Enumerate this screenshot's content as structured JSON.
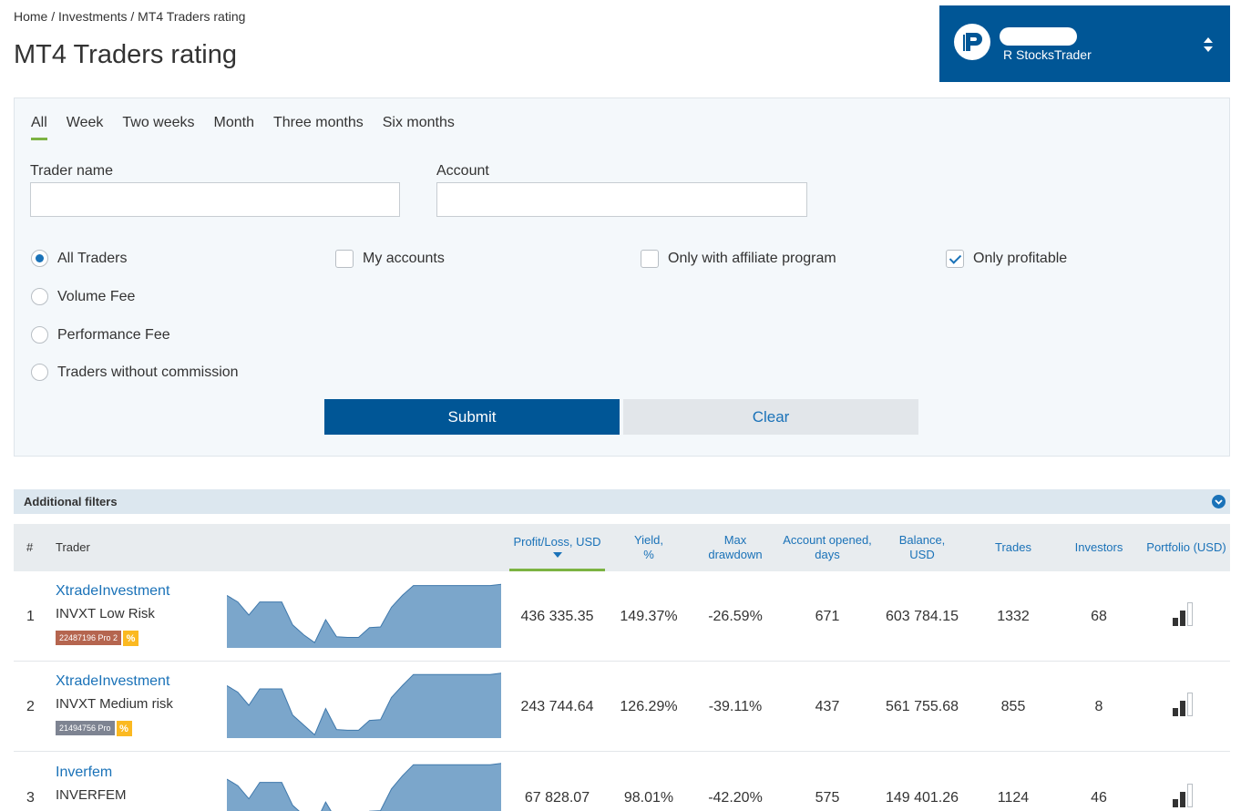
{
  "breadcrumb": "Home / Investments / MT4 Traders rating",
  "page_title": "MT4 Traders rating",
  "account": {
    "platform": "R StocksTrader"
  },
  "tabs": [
    "All",
    "Week",
    "Two weeks",
    "Month",
    "Three months",
    "Six months"
  ],
  "active_tab": "All",
  "filters": {
    "trader_name_label": "Trader name",
    "trader_name_value": "",
    "account_label": "Account",
    "account_value": "",
    "commission_options": [
      {
        "label": "All Traders",
        "checked": true
      },
      {
        "label": "Volume Fee",
        "checked": false
      },
      {
        "label": "Performance Fee",
        "checked": false
      },
      {
        "label": "Traders without commission",
        "checked": false
      }
    ],
    "my_accounts": {
      "label": "My accounts",
      "checked": false
    },
    "affiliate": {
      "label": "Only with affiliate program",
      "checked": false
    },
    "profitable": {
      "label": "Only profitable",
      "checked": true
    },
    "submit_label": "Submit",
    "clear_label": "Clear"
  },
  "additional_filters_label": "Additional filters",
  "table": {
    "headers": {
      "rank": "#",
      "trader": "Trader",
      "profit_l1": "Profit/Loss, USD",
      "yield_l1": "Yield,",
      "yield_l2": "%",
      "drawdown_l1": "Max",
      "drawdown_l2": "drawdown",
      "opened_l1": "Account opened,",
      "opened_l2": "days",
      "balance_l1": "Balance,",
      "balance_l2": "USD",
      "trades": "Trades",
      "investors": "Investors",
      "portfolio": "Portfolio (USD)"
    },
    "sorted_by": "Profit/Loss, USD",
    "rows": [
      {
        "rank": "1",
        "name": "XtradeInvestment",
        "strategy": "INVXT Low Risk",
        "account_badge": "22487196 Pro 2",
        "badge_color": "#b5654f",
        "percent_badge": "%",
        "profit": "436 335.35",
        "yield": "149.37%",
        "drawdown": "-26.59%",
        "opened": "671",
        "balance": "603 784.15",
        "trades": "1332",
        "investors": "68",
        "portfolio_level": 2,
        "spark": [
          0.8,
          0.7,
          0.5,
          0.7,
          0.7,
          0.7,
          0.35,
          0.2,
          0.08,
          0.43,
          0.17,
          0.16,
          0.16,
          0.31,
          0.32,
          0.62,
          0.8,
          0.95,
          0.95,
          0.95,
          0.95,
          0.95,
          0.95,
          0.95,
          0.95,
          0.97
        ]
      },
      {
        "rank": "2",
        "name": "XtradeInvestment",
        "strategy": "INVXT Medium risk",
        "account_badge": "21494756 Pro",
        "badge_color": "#7e8492",
        "percent_badge": "%",
        "profit": "243 744.64",
        "yield": "126.29%",
        "drawdown": "-39.11%",
        "opened": "437",
        "balance": "561 755.68",
        "trades": "855",
        "investors": "8",
        "portfolio_level": 2,
        "spark": [
          0.8,
          0.7,
          0.5,
          0.75,
          0.75,
          0.75,
          0.35,
          0.2,
          0.05,
          0.45,
          0.13,
          0.12,
          0.12,
          0.27,
          0.28,
          0.62,
          0.8,
          0.97,
          0.97,
          0.97,
          0.97,
          0.97,
          0.97,
          0.97,
          0.97,
          0.99
        ]
      },
      {
        "rank": "3",
        "name": "Inverfem",
        "strategy": "INVERFEM",
        "profit": "67 828.07",
        "yield": "98.01%",
        "drawdown": "-42.20%",
        "opened": "575",
        "balance": "149 401.26",
        "trades": "1124",
        "investors": "46",
        "portfolio_level": 2,
        "spark": [
          0.75,
          0.65,
          0.45,
          0.7,
          0.7,
          0.7,
          0.35,
          0.2,
          0.05,
          0.4,
          0.12,
          0.11,
          0.11,
          0.26,
          0.27,
          0.6,
          0.8,
          0.97,
          0.97,
          0.97,
          0.97,
          0.97,
          0.97,
          0.97,
          0.97,
          0.99
        ]
      }
    ]
  },
  "colors": {
    "brand_blue": "#005696",
    "link_blue": "#1a72b8",
    "active_green": "#7cb342",
    "sparkline_fill": "#7ba6cb",
    "sparkline_stroke": "#3f78ab"
  }
}
